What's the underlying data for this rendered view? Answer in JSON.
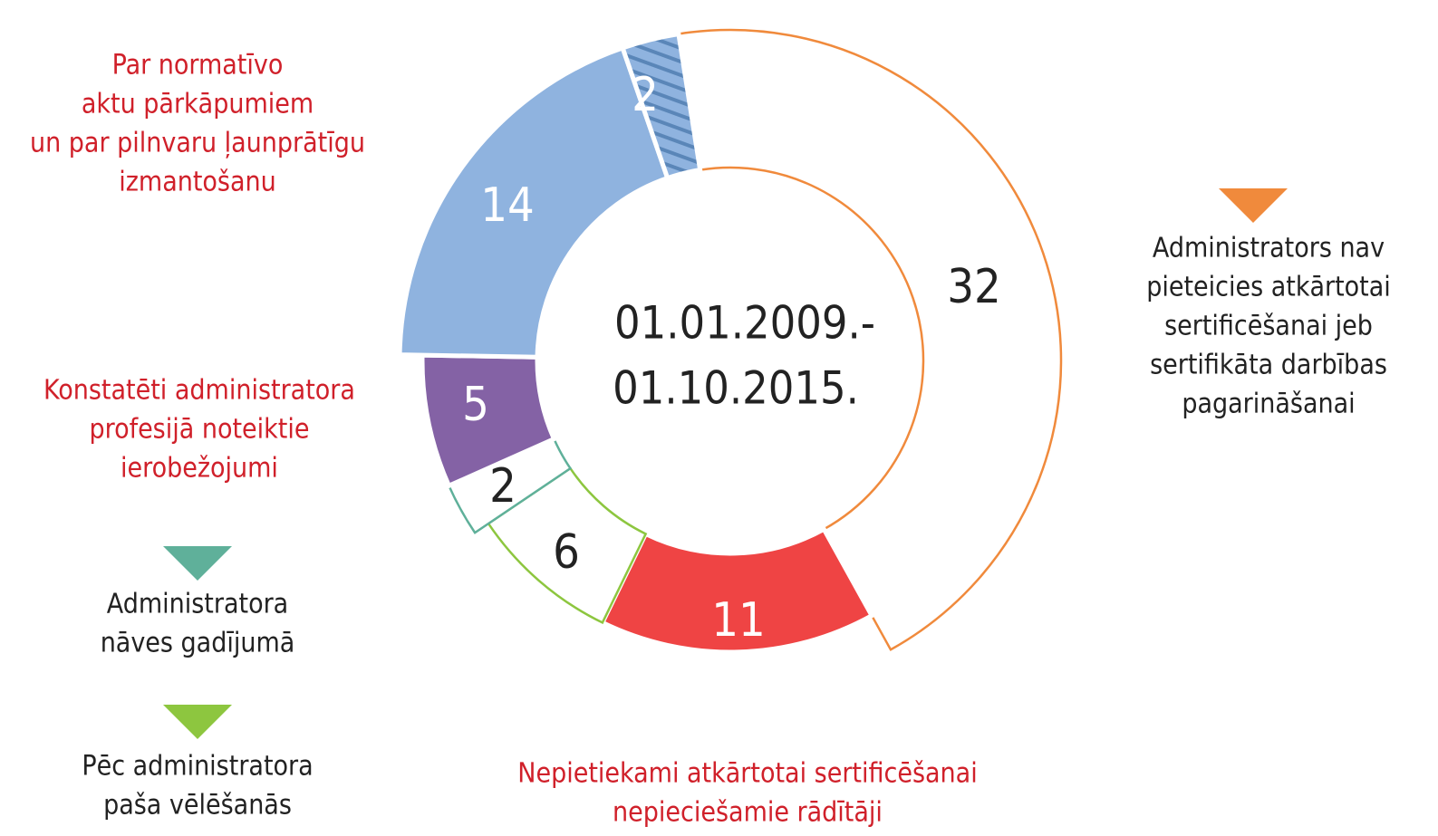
{
  "chart_data": {
    "type": "donut",
    "center_text": [
      "01.01.2009.-",
      "01.10.2015."
    ],
    "values": [
      32,
      11,
      6,
      2,
      5,
      14,
      2
    ],
    "colors": [
      "#ffffff",
      "#ef4444",
      "#ffffff",
      "#ffffff",
      "#8462a5",
      "#8fb3df",
      "#8fb3df"
    ],
    "stroke_colors": [
      "#f08a3c",
      "#ffffff",
      "#8dc63f",
      "#5fb09a",
      "#ffffff",
      "#ffffff",
      "#ffffff"
    ],
    "hatched": [
      false,
      false,
      false,
      false,
      false,
      false,
      true
    ],
    "categories": [
      [
        "Administrators nav",
        "pieteicies atkārtotai",
        "sertificēšanai jeb",
        "sertifikāta darbības",
        "pagarināšanai"
      ],
      [
        "Nepietiekami atkārtotai sertificēšanai",
        "nepieciešamie rādītāji"
      ],
      [
        "Pēc administratora",
        "paša vēlēšanās"
      ],
      [
        "Administratora",
        "nāves gadījumā"
      ],
      [
        "Konstatēti administratora",
        "profesijā noteiktie",
        "ierobežojumi"
      ],
      [
        "Par normatīvo",
        "aktu pārkāpumiem",
        "un par pilnvaru ļaunprātīgu",
        "izmantošanu"
      ],
      null
    ],
    "label_colors": [
      "#222222",
      "#d0202a",
      "#222222",
      "#222222",
      "#d0202a",
      "#d0202a",
      null
    ]
  }
}
